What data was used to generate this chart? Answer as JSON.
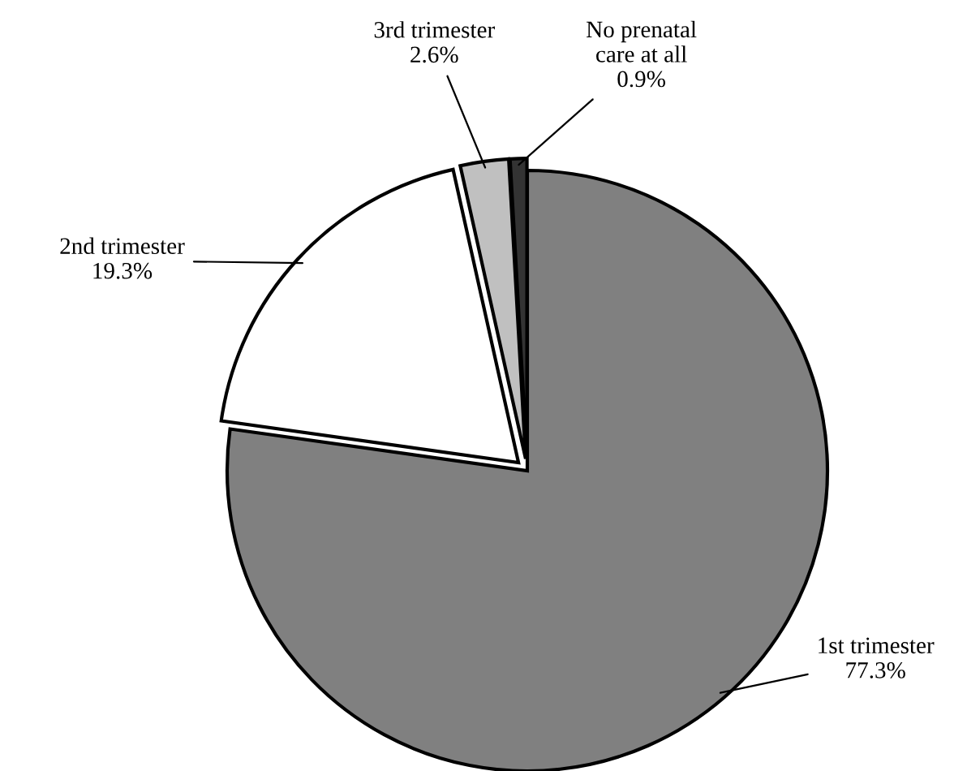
{
  "chart_data": {
    "type": "pie",
    "categories": [
      "1st trimester",
      "2nd trimester",
      "3rd trimester",
      "No prenatal\ncare at all"
    ],
    "values": [
      77.3,
      19.3,
      2.6,
      0.9
    ],
    "value_labels": [
      "77.3%",
      "19.3%",
      "2.6%",
      "0.9%"
    ],
    "colors": [
      "#808080",
      "#ffffff",
      "#c0c0c0",
      "#333333"
    ],
    "legend": false
  }
}
